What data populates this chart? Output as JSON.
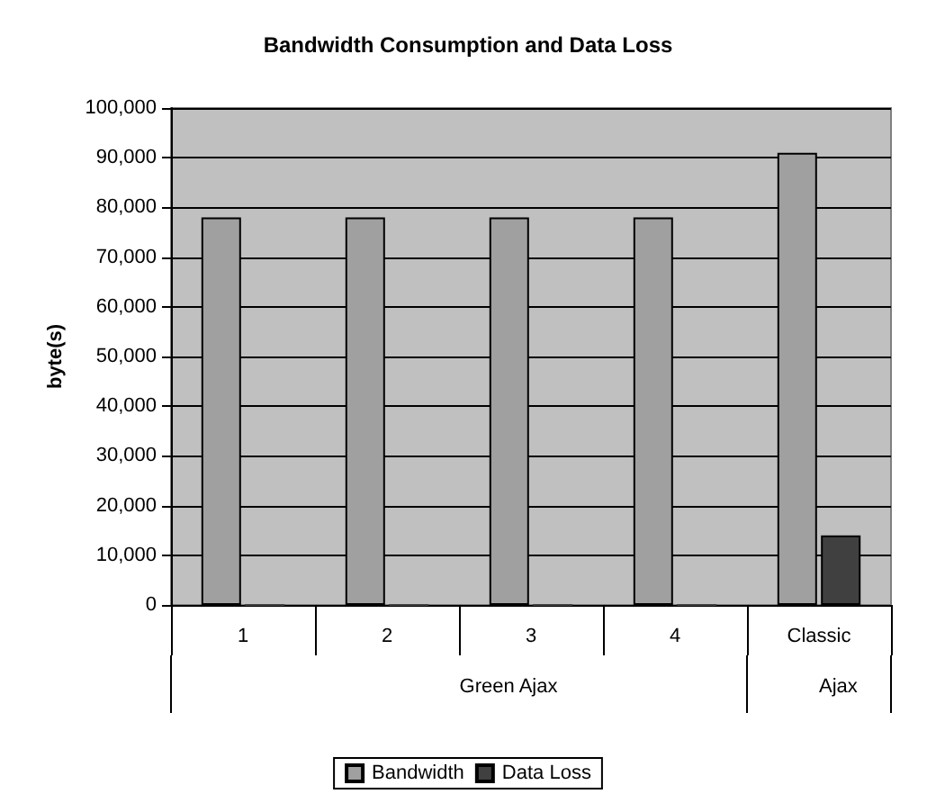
{
  "chart_data": {
    "type": "bar",
    "title": "Bandwidth Consumption and Data Loss",
    "ylabel": "byte(s)",
    "categories": [
      "1",
      "2",
      "3",
      "4",
      "Classic"
    ],
    "series": [
      {
        "name": "Bandwidth",
        "color": "#a0a0a0",
        "values": [
          78000,
          78000,
          78000,
          78000,
          91000
        ]
      },
      {
        "name": "Data Loss",
        "color": "#404040",
        "values": [
          0,
          0,
          0,
          0,
          14000
        ]
      }
    ],
    "ylim": [
      0,
      100000
    ],
    "yticks": [
      0,
      {
        "value": 10000,
        "label": "10,000"
      },
      {
        "value": 20000,
        "label": "20,000"
      },
      {
        "value": 30000,
        "label": "30,000"
      },
      {
        "value": 40000,
        "label": "40,000"
      },
      {
        "value": 50000,
        "label": "50,000"
      },
      {
        "value": 60000,
        "label": "60,000"
      },
      {
        "value": 70000,
        "label": "70,000"
      },
      {
        "value": 80000,
        "label": "80,000"
      },
      {
        "value": 90000,
        "label": "90,000"
      },
      {
        "value": 100000,
        "label": "100,000"
      }
    ],
    "grid": "y",
    "legend": "bottom",
    "annotations": [
      "Green Ajax",
      "Ajax"
    ]
  }
}
